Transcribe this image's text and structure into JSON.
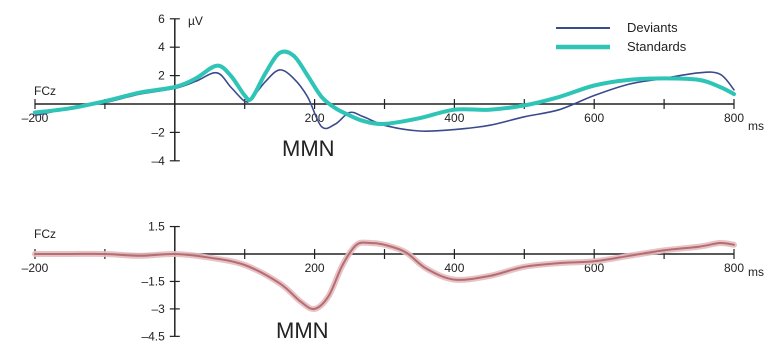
{
  "chart_data": [
    {
      "type": "line",
      "channel_label": "FCz",
      "unit_label": "µV",
      "annotation": "MMN",
      "x_unit": "ms",
      "xlim": [
        -200,
        800
      ],
      "ylim": [
        -4,
        6
      ],
      "x_ticks": [
        -200,
        200,
        400,
        600,
        800
      ],
      "y_ticks": [
        -4,
        -2,
        2,
        4,
        6
      ],
      "grid": false,
      "legend_position": "top-right",
      "series": [
        {
          "name": "Deviants",
          "color": "#3b4a8c",
          "x": [
            -200,
            -150,
            -100,
            -50,
            0,
            30,
            60,
            80,
            100,
            110,
            130,
            150,
            170,
            190,
            210,
            230,
            250,
            270,
            300,
            350,
            400,
            450,
            500,
            550,
            600,
            650,
            700,
            750,
            780,
            800
          ],
          "y": [
            -0.8,
            -0.3,
            0.1,
            0.7,
            1.1,
            1.6,
            2.2,
            1.2,
            0.2,
            0.4,
            1.6,
            2.4,
            1.8,
            0.5,
            -1.6,
            -1.4,
            -0.6,
            -0.9,
            -1.5,
            -1.9,
            -1.8,
            -1.5,
            -0.9,
            -0.4,
            0.6,
            1.4,
            1.8,
            2.2,
            2.1,
            1.0
          ]
        },
        {
          "name": "Standards",
          "color": "#2ec4b6",
          "x": [
            -200,
            -150,
            -100,
            -50,
            0,
            30,
            60,
            80,
            100,
            110,
            130,
            150,
            170,
            190,
            210,
            230,
            250,
            270,
            300,
            350,
            400,
            450,
            500,
            550,
            600,
            650,
            700,
            750,
            780,
            800
          ],
          "y": [
            -0.6,
            -0.3,
            0.2,
            0.8,
            1.2,
            1.8,
            2.7,
            2.0,
            0.6,
            0.4,
            2.2,
            3.6,
            3.4,
            2.0,
            0.5,
            -0.3,
            -0.8,
            -1.2,
            -1.4,
            -1.0,
            -0.4,
            -0.4,
            -0.1,
            0.5,
            1.3,
            1.7,
            1.8,
            1.7,
            1.2,
            0.7
          ]
        }
      ]
    },
    {
      "type": "line",
      "channel_label": "FCz",
      "annotation": "MMN",
      "x_unit": "ms",
      "xlim": [
        -200,
        800
      ],
      "ylim": [
        -4.5,
        1.5
      ],
      "x_ticks": [
        -200,
        200,
        400,
        600,
        800
      ],
      "y_ticks": [
        -4.5,
        -3,
        -1.5,
        1.5
      ],
      "y_tick_labels": [
        "-4.5",
        "-3",
        "-1.5",
        "1.5"
      ],
      "grid": false,
      "series": [
        {
          "color": "#b56d72",
          "band_color": "#e4bcc0",
          "x": [
            -200,
            -150,
            -100,
            -50,
            0,
            50,
            100,
            150,
            180,
            200,
            220,
            240,
            260,
            280,
            300,
            330,
            360,
            400,
            450,
            500,
            550,
            600,
            650,
            700,
            750,
            780,
            800
          ],
          "y": [
            0.0,
            0.0,
            0.0,
            -0.1,
            0.0,
            -0.2,
            -0.6,
            -1.6,
            -2.6,
            -3.0,
            -2.3,
            -0.6,
            0.5,
            0.6,
            0.5,
            0.1,
            -0.8,
            -1.4,
            -1.2,
            -0.7,
            -0.5,
            -0.4,
            -0.1,
            0.2,
            0.4,
            0.6,
            0.5
          ]
        }
      ]
    }
  ]
}
